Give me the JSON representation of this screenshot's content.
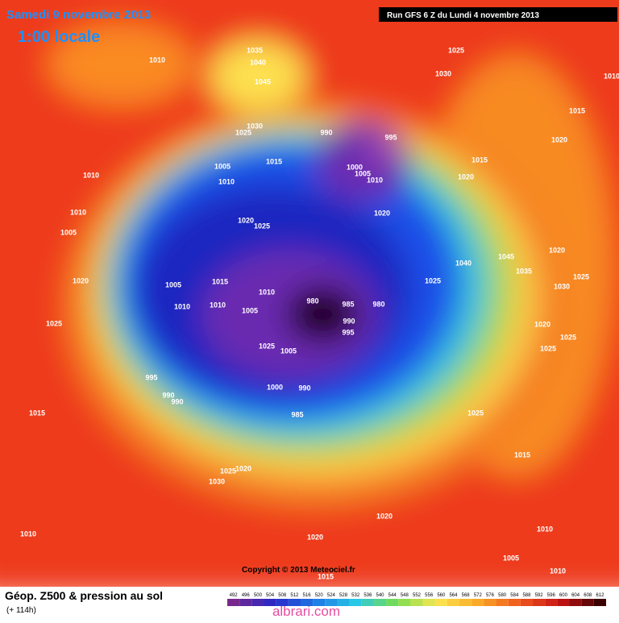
{
  "header": {
    "date": "Samedi 9 novembre 2013",
    "time": "1:00 locale",
    "run": "Run GFS 6 Z du Lundi 4 novembre 2013"
  },
  "copyright": "Copyright © 2013 Meteociel.fr",
  "footer": {
    "title": "Géop. Z500 & pression au sol",
    "lead": "(+ 114h)",
    "watermark": "albrari.com"
  },
  "legend": {
    "values": [
      492,
      496,
      500,
      504,
      508,
      512,
      516,
      520,
      524,
      528,
      532,
      536,
      540,
      544,
      548,
      552,
      556,
      560,
      564,
      568,
      572,
      576,
      580,
      584,
      588,
      592,
      596,
      600,
      604,
      608,
      612
    ]
  },
  "isobars": [
    "1010",
    "1035",
    "1040",
    "1045",
    "1025",
    "1030",
    "1010",
    "1015",
    "1020",
    "1030",
    "1025",
    "990",
    "995",
    "1005",
    "1015",
    "1000",
    "1005",
    "1010",
    "1015",
    "1020",
    "1010",
    "1010",
    "1010",
    "1020",
    "1025",
    "1020",
    "1005",
    "1040",
    "1045",
    "1035",
    "1020",
    "1025",
    "1030",
    "1020",
    "1005",
    "1015",
    "1025",
    "1010",
    "980",
    "985",
    "980",
    "1010",
    "1010",
    "1005",
    "990",
    "995",
    "1025",
    "1020",
    "1025",
    "1025",
    "1025",
    "1005",
    "995",
    "1000",
    "990",
    "990",
    "990",
    "985",
    "1015",
    "1025",
    "1015",
    "1020",
    "1025",
    "1030",
    "1020",
    "1010",
    "1020",
    "1010",
    "1005",
    "1010",
    "1015"
  ]
}
